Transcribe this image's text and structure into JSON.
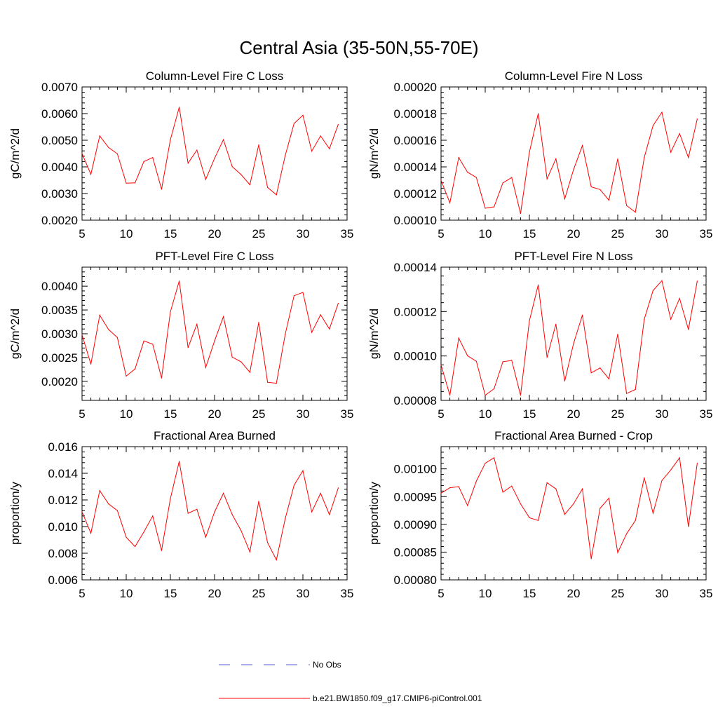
{
  "figure": {
    "title": "Central Asia (35-50N,55-70E)"
  },
  "chart_data": [
    {
      "type": "line",
      "title": "Column-Level Fire C Loss",
      "ylabel": "gC/m^2/d",
      "xlabel": "",
      "xlim": [
        5,
        35
      ],
      "ylim": [
        0.002,
        0.007
      ],
      "xticks": [
        "5",
        "10",
        "15",
        "20",
        "25",
        "30",
        "35"
      ],
      "yticks": [
        "0.0020",
        "0.0030",
        "0.0040",
        "0.0050",
        "0.0060",
        "0.0070"
      ],
      "series": [
        {
          "name": "b.e21.BW1850.f09_g17.CMIP6-piControl.001",
          "color": "#ff0000",
          "x": [
            5,
            6,
            7,
            8,
            9,
            10,
            11,
            12,
            13,
            14,
            15,
            16,
            17,
            18,
            19,
            20,
            21,
            22,
            23,
            24,
            25,
            26,
            27,
            28,
            29,
            30,
            31,
            32,
            33,
            34
          ],
          "values": [
            0.0045,
            0.00372,
            0.00516,
            0.00473,
            0.00449,
            0.00339,
            0.0034,
            0.0042,
            0.00435,
            0.00316,
            0.00502,
            0.00624,
            0.00414,
            0.00463,
            0.00353,
            0.00432,
            0.00502,
            0.00401,
            0.00371,
            0.00333,
            0.00483,
            0.00323,
            0.00295,
            0.00443,
            0.00563,
            0.00594,
            0.00459,
            0.00516,
            0.00468,
            0.00559
          ]
        }
      ]
    },
    {
      "type": "line",
      "title": "Column-Level Fire N Loss",
      "ylabel": "gN/m^2/d",
      "xlabel": "",
      "xlim": [
        5,
        35
      ],
      "ylim": [
        0.0001,
        0.0002
      ],
      "xticks": [
        "5",
        "10",
        "15",
        "20",
        "25",
        "30",
        "35"
      ],
      "yticks": [
        "0.00010",
        "0.00012",
        "0.00014",
        "0.00016",
        "0.00018",
        "0.00020"
      ],
      "series": [
        {
          "name": "b.e21.BW1850.f09_g17.CMIP6-piControl.001",
          "color": "#ff0000",
          "x": [
            5,
            6,
            7,
            8,
            9,
            10,
            11,
            12,
            13,
            14,
            15,
            16,
            17,
            18,
            19,
            20,
            21,
            22,
            23,
            24,
            25,
            26,
            27,
            28,
            29,
            30,
            31,
            32,
            33,
            34
          ],
          "values": [
            0.00013,
            0.000113,
            0.000147,
            0.000136,
            0.000132,
            0.000109,
            0.00011,
            0.000128,
            0.000132,
            0.000105,
            0.000151,
            0.00018,
            0.000131,
            0.000146,
            0.000116,
            0.000138,
            0.000156,
            0.000125,
            0.000123,
            0.000115,
            0.000146,
            0.000111,
            0.000106,
            0.000147,
            0.000171,
            0.000181,
            0.000151,
            0.000165,
            0.000147,
            0.000176
          ]
        }
      ]
    },
    {
      "type": "line",
      "title": "PFT-Level Fire C Loss",
      "ylabel": "gC/m^2/d",
      "xlabel": "",
      "xlim": [
        5,
        35
      ],
      "ylim": [
        0.0016,
        0.0044
      ],
      "xticks": [
        "5",
        "10",
        "15",
        "20",
        "25",
        "30",
        "35"
      ],
      "yticks": [
        "0.0020",
        "0.0025",
        "0.0030",
        "0.0035",
        "0.0040"
      ],
      "series": [
        {
          "name": "b.e21.BW1850.f09_g17.CMIP6-piControl.001",
          "color": "#ff0000",
          "x": [
            5,
            6,
            7,
            8,
            9,
            10,
            11,
            12,
            13,
            14,
            15,
            16,
            17,
            18,
            19,
            20,
            21,
            22,
            23,
            24,
            25,
            26,
            27,
            28,
            29,
            30,
            31,
            32,
            33,
            34
          ],
          "values": [
            0.00298,
            0.00236,
            0.00339,
            0.00309,
            0.00292,
            0.00211,
            0.00226,
            0.00285,
            0.00278,
            0.00207,
            0.00346,
            0.00411,
            0.00271,
            0.0032,
            0.00229,
            0.00285,
            0.00336,
            0.00251,
            0.00241,
            0.00219,
            0.00324,
            0.00198,
            0.00196,
            0.00299,
            0.0038,
            0.00387,
            0.00303,
            0.0034,
            0.0031,
            0.00364
          ]
        }
      ]
    },
    {
      "type": "line",
      "title": "PFT-Level Fire N Loss",
      "ylabel": "gN/m^2/d",
      "xlabel": "",
      "xlim": [
        5,
        35
      ],
      "ylim": [
        8e-05,
        0.00014
      ],
      "xticks": [
        "5",
        "10",
        "15",
        "20",
        "25",
        "30",
        "35"
      ],
      "yticks": [
        "0.00008",
        "0.00010",
        "0.00012",
        "0.00014"
      ],
      "series": [
        {
          "name": "b.e21.BW1850.f09_g17.CMIP6-piControl.001",
          "color": "#ff0000",
          "x": [
            5,
            6,
            7,
            8,
            9,
            10,
            11,
            12,
            13,
            14,
            15,
            16,
            17,
            18,
            19,
            20,
            21,
            22,
            23,
            24,
            25,
            26,
            27,
            28,
            29,
            30,
            31,
            32,
            33,
            34
          ],
          "values": [
            9.6e-05,
            8.23e-05,
            0.000108,
            0.0001001,
            9.76e-05,
            8.23e-05,
            8.52e-05,
            9.74e-05,
            9.8e-05,
            8.23e-05,
            0.0001158,
            0.000132,
            9.94e-05,
            0.0001143,
            8.87e-05,
            0.0001056,
            0.0001184,
            9.24e-05,
            9.46e-05,
            8.97e-05,
            0.0001098,
            8.31e-05,
            8.49e-05,
            0.0001165,
            0.0001295,
            0.0001339,
            0.0001165,
            0.0001259,
            0.0001119,
            0.0001337
          ]
        }
      ]
    },
    {
      "type": "line",
      "title": "Fractional Area Burned",
      "ylabel": "proportion/y",
      "xlabel": "",
      "xlim": [
        5,
        35
      ],
      "ylim": [
        0.006,
        0.016
      ],
      "xticks": [
        "5",
        "10",
        "15",
        "20",
        "25",
        "30",
        "35"
      ],
      "yticks": [
        "0.006",
        "0.008",
        "0.010",
        "0.012",
        "0.014",
        "0.016"
      ],
      "series": [
        {
          "name": "b.e21.BW1850.f09_g17.CMIP6-piControl.001",
          "color": "#ff0000",
          "x": [
            5,
            6,
            7,
            8,
            9,
            10,
            11,
            12,
            13,
            14,
            15,
            16,
            17,
            18,
            19,
            20,
            21,
            22,
            23,
            24,
            25,
            26,
            27,
            28,
            29,
            30,
            31,
            32,
            33,
            34
          ],
          "values": [
            0.0111,
            0.0095,
            0.0127,
            0.0117,
            0.0112,
            0.0092,
            0.0085,
            0.0096,
            0.0108,
            0.0082,
            0.0121,
            0.0149,
            0.011,
            0.0113,
            0.0092,
            0.0111,
            0.0125,
            0.0109,
            0.0097,
            0.0081,
            0.0119,
            0.0088,
            0.0075,
            0.0106,
            0.0131,
            0.0142,
            0.0111,
            0.0125,
            0.0109,
            0.0129
          ]
        }
      ]
    },
    {
      "type": "line",
      "title": "Fractional Area Burned - Crop",
      "ylabel": "proportion/y",
      "xlabel": "",
      "xlim": [
        5,
        35
      ],
      "ylim": [
        0.0008,
        0.00104
      ],
      "xticks": [
        "5",
        "10",
        "15",
        "20",
        "25",
        "30",
        "35"
      ],
      "yticks": [
        "0.00080",
        "0.00085",
        "0.00090",
        "0.00095",
        "0.00100"
      ],
      "series": [
        {
          "name": "b.e21.BW1850.f09_g17.CMIP6-piControl.001",
          "color": "#ff0000",
          "x": [
            5,
            6,
            7,
            8,
            9,
            10,
            11,
            12,
            13,
            14,
            15,
            16,
            17,
            18,
            19,
            20,
            21,
            22,
            23,
            24,
            25,
            26,
            27,
            28,
            29,
            30,
            31,
            32,
            33,
            34
          ],
          "values": [
            0.000956,
            0.000966,
            0.000968,
            0.000934,
            0.000978,
            0.00101,
            0.00102,
            0.000958,
            0.000969,
            0.000937,
            0.000912,
            0.000907,
            0.000975,
            0.000964,
            0.000918,
            0.000937,
            0.000964,
            0.000838,
            0.000929,
            0.000947,
            0.000849,
            0.000883,
            0.000907,
            0.000984,
            0.00092,
            0.000979,
            0.000998,
            0.00102,
            0.000896,
            0.00101
          ]
        }
      ]
    }
  ],
  "legend": {
    "items": [
      {
        "label": "No Obs",
        "color": "#5b5bd6",
        "dash": true
      },
      {
        "label": "b.e21.BW1850.f09_g17.CMIP6-piControl.001",
        "color": "#ff0000",
        "dash": false
      }
    ]
  }
}
